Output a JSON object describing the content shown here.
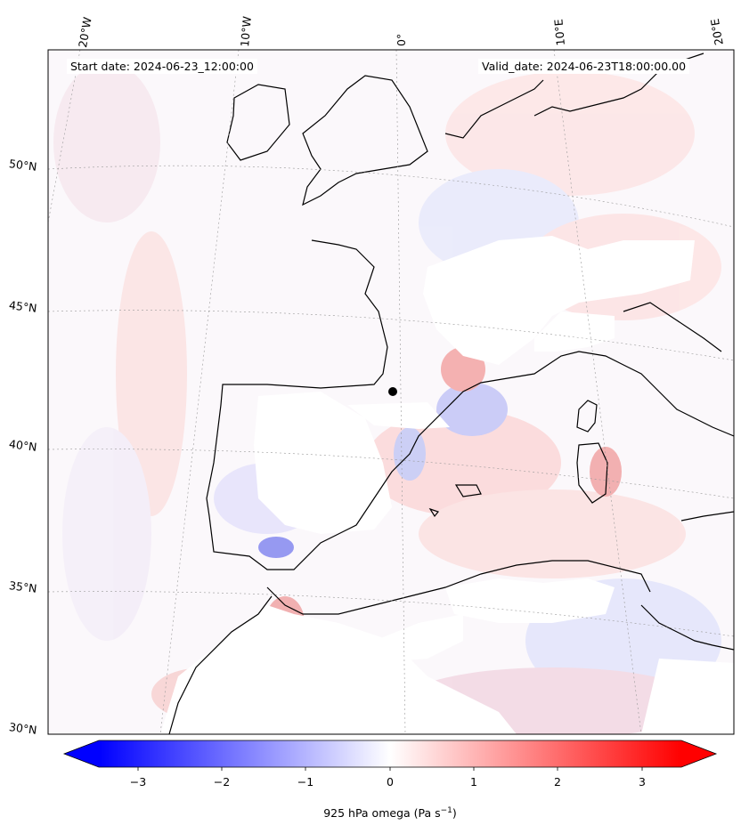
{
  "header": {
    "start_date": "Start date: 2024-06-23_12:00:00",
    "valid_date": "Valid_date: 2024-06-23T18:00:00.00"
  },
  "longitude_labels": [
    "20°W",
    "10°W",
    "0°",
    "10°E",
    "20°E"
  ],
  "latitude_labels": [
    "50°N",
    "45°N",
    "40°N",
    "35°N",
    "30°N"
  ],
  "colorbar": {
    "label_main": "925 hPa omega (Pa s",
    "label_exp": "−1",
    "label_close": ")",
    "ticks": [
      "−3",
      "−2",
      "−1",
      "0",
      "1",
      "2",
      "3"
    ],
    "range": [
      -3.7,
      3.7
    ],
    "colors": {
      "min": "#0000ff",
      "zero": "#ffffff",
      "max": "#ff0000"
    }
  },
  "map": {
    "projection": "conic",
    "extent_lon": [
      -20,
      20
    ],
    "extent_lat": [
      30,
      53
    ],
    "field": "925 hPa omega",
    "coastline_color": "#000000",
    "gridline_style": "dotted-gray"
  }
}
